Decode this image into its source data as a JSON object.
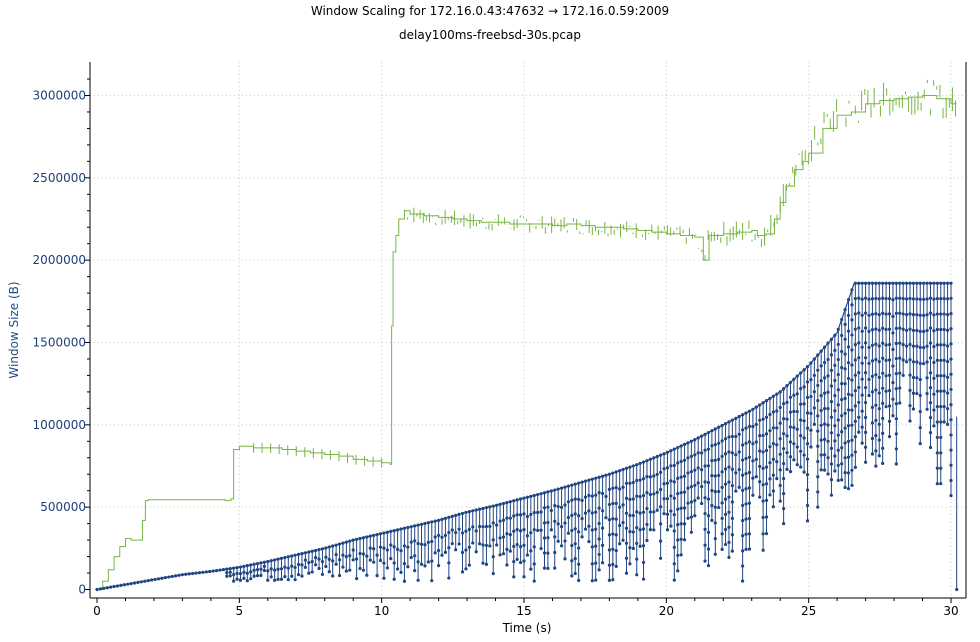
{
  "chart_data": {
    "type": "line",
    "title": "Window Scaling for 172.16.0.43:47632 → 172.16.0.59:2009",
    "subtitle": "delay100ms-freebsd-30s.pcap",
    "xlabel": "Time (s)",
    "ylabel": "Window Size (B)",
    "xlim": [
      -0.2,
      30.5
    ],
    "ylim": [
      -50000,
      3200000
    ],
    "x_ticks": [
      "0",
      "5",
      "10",
      "15",
      "20",
      "25",
      "30"
    ],
    "y_ticks": [
      "0",
      "500000",
      "1000000",
      "1500000",
      "2000000",
      "2500000",
      "3000000"
    ],
    "grid": true,
    "colors": {
      "receive_window": "#78b542",
      "bytes_out": "#1f4583"
    },
    "series": [
      {
        "key": "receive_window",
        "style": "step",
        "x": [
          0.0,
          0.2,
          0.4,
          0.6,
          0.8,
          1.0,
          1.2,
          1.5,
          1.6,
          1.7,
          1.8,
          2.0,
          2.5,
          3.0,
          3.5,
          4.0,
          4.5,
          4.7,
          4.8,
          5.0,
          5.5,
          6.0,
          6.5,
          7.0,
          7.5,
          8.0,
          8.5,
          9.0,
          9.5,
          10.0,
          10.3,
          10.35,
          10.4,
          10.5,
          10.6,
          10.8,
          11.0,
          11.5,
          12.0,
          12.5,
          13.0,
          13.5,
          14.0,
          14.5,
          15.0,
          15.5,
          16.0,
          16.5,
          17.0,
          17.5,
          18.0,
          18.5,
          19.0,
          19.5,
          20.0,
          20.5,
          21.0,
          21.3,
          21.5,
          22.0,
          22.5,
          23.0,
          23.2,
          23.5,
          23.8,
          24.0,
          24.2,
          24.5,
          24.8,
          25.0,
          25.5,
          26.0,
          26.5,
          27.0,
          27.5,
          28.0,
          28.5,
          29.0,
          29.5,
          30.0,
          30.2
        ],
        "values": [
          0,
          50000,
          120000,
          200000,
          260000,
          310000,
          300000,
          300000,
          420000,
          540000,
          545000,
          545000,
          545000,
          545000,
          545000,
          545000,
          540000,
          550000,
          850000,
          870000,
          860000,
          860000,
          850000,
          840000,
          830000,
          820000,
          810000,
          790000,
          780000,
          770000,
          760000,
          1600000,
          2050000,
          2150000,
          2250000,
          2300000,
          2280000,
          2270000,
          2260000,
          2250000,
          2240000,
          2230000,
          2230000,
          2220000,
          2220000,
          2220000,
          2210000,
          2220000,
          2210000,
          2200000,
          2200000,
          2190000,
          2180000,
          2170000,
          2160000,
          2150000,
          2140000,
          2000000,
          2150000,
          2160000,
          2170000,
          2180000,
          2150000,
          2160000,
          2250000,
          2350000,
          2450000,
          2550000,
          2600000,
          2650000,
          2800000,
          2880000,
          2900000,
          2950000,
          2970000,
          2980000,
          2990000,
          3000000,
          2980000,
          2950000,
          2950000
        ]
      },
      {
        "key": "bytes_out",
        "style": "markers",
        "x": [
          0.0,
          1.0,
          2.0,
          3.0,
          4.0,
          5.0,
          6.0,
          7.0,
          8.0,
          9.0,
          10.0,
          11.0,
          12.0,
          13.0,
          14.0,
          15.0,
          16.0,
          17.0,
          18.0,
          19.0,
          20.0,
          21.0,
          22.0,
          23.0,
          24.0,
          25.0,
          26.0,
          26.6,
          27.0,
          28.0,
          29.0,
          30.0
        ],
        "values": [
          0,
          30000,
          60000,
          90000,
          110000,
          135000,
          170000,
          210000,
          250000,
          300000,
          340000,
          380000,
          420000,
          470000,
          510000,
          555000,
          600000,
          650000,
          700000,
          760000,
          830000,
          910000,
          1000000,
          1090000,
          1200000,
          1360000,
          1560000,
          1860000,
          1860000,
          1860000,
          1860000,
          1860000
        ],
        "floor_values": [
          0,
          25000,
          40000,
          50000,
          50000,
          50000,
          50000,
          50000,
          50000,
          50000,
          50000,
          50000,
          50000,
          50000,
          50000,
          50000,
          50000,
          50000,
          50000,
          50000,
          50000,
          50000,
          50000,
          50000,
          200000,
          400000,
          500000,
          500000,
          700000,
          700000,
          800000,
          400000
        ]
      }
    ]
  }
}
